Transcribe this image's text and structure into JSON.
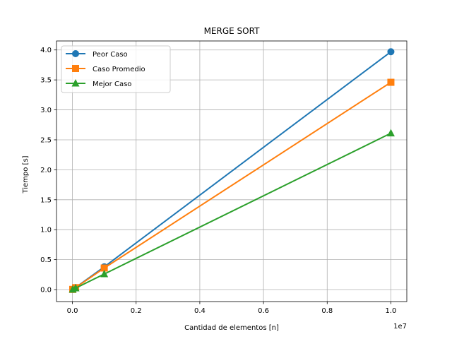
{
  "chart_data": {
    "type": "line",
    "title": "MERGE SORT",
    "xlabel": "Cantidad de elementos [n]",
    "ylabel": "Tiempo [s]",
    "x_offset_label": "1e7",
    "x": [
      10000,
      100000,
      1000000,
      10000000
    ],
    "xlim": [
      -500000,
      10500000
    ],
    "ylim": [
      -0.2,
      4.15
    ],
    "x_ticks": [
      0,
      2000000,
      4000000,
      6000000,
      8000000,
      10000000
    ],
    "x_tick_labels": [
      "0.0",
      "0.2",
      "0.4",
      "0.6",
      "0.8",
      "1.0"
    ],
    "y_ticks": [
      0,
      0.5,
      1.0,
      1.5,
      2.0,
      2.5,
      3.0,
      3.5,
      4.0
    ],
    "y_tick_labels": [
      "0.0",
      "0.5",
      "1.0",
      "1.5",
      "2.0",
      "2.5",
      "3.0",
      "3.5",
      "4.0"
    ],
    "grid": true,
    "legend_position": "top-left",
    "series": [
      {
        "name": "Peor Caso",
        "color": "#1f77b4",
        "marker": "circle",
        "values": [
          0.003,
          0.035,
          0.38,
          3.97
        ]
      },
      {
        "name": "Caso Promedio",
        "color": "#ff7f0e",
        "marker": "square",
        "values": [
          0.003,
          0.032,
          0.36,
          3.46
        ]
      },
      {
        "name": "Mejor Caso",
        "color": "#2ca02c",
        "marker": "triangle",
        "values": [
          0.002,
          0.024,
          0.26,
          2.61
        ]
      }
    ]
  }
}
